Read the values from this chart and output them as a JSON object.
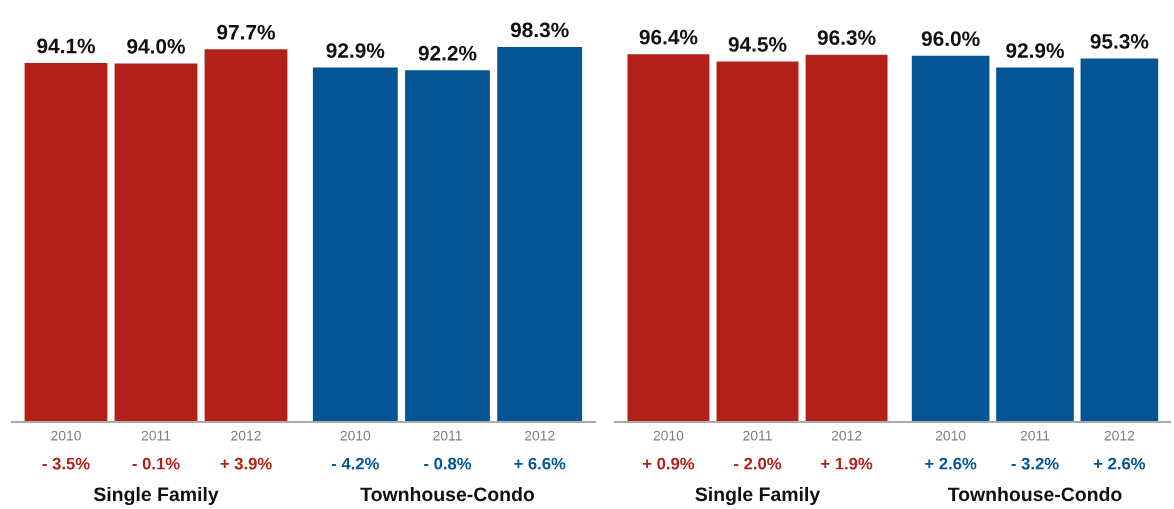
{
  "chart_data": [
    {
      "type": "bar",
      "categories": [
        "2010",
        "2011",
        "2012"
      ],
      "values": [
        94.1,
        94.0,
        97.7
      ],
      "color": "#b22019",
      "value_labels": [
        "94.1%",
        "94.0%",
        "97.7%"
      ],
      "annotations": [
        "- 3.5%",
        "- 0.1%",
        "+ 3.9%"
      ],
      "xlabel": "Single Family"
    },
    {
      "type": "bar",
      "categories": [
        "2010",
        "2011",
        "2012"
      ],
      "values": [
        92.9,
        92.2,
        98.3
      ],
      "color": "#035596",
      "value_labels": [
        "92.9%",
        "92.2%",
        "98.3%"
      ],
      "annotations": [
        "- 4.2%",
        "- 0.8%",
        "+ 6.6%"
      ],
      "xlabel": "Townhouse-Condo"
    },
    {
      "type": "bar",
      "categories": [
        "2010",
        "2011",
        "2012"
      ],
      "values": [
        96.4,
        94.5,
        96.3
      ],
      "color": "#b22019",
      "value_labels": [
        "96.4%",
        "94.5%",
        "96.3%"
      ],
      "annotations": [
        "+ 0.9%",
        "- 2.0%",
        "+ 1.9%"
      ],
      "xlabel": "Single Family"
    },
    {
      "type": "bar",
      "categories": [
        "2010",
        "2011",
        "2012"
      ],
      "values": [
        96.0,
        92.9,
        95.3
      ],
      "color": "#035596",
      "value_labels": [
        "96.0%",
        "92.9%",
        "95.3%"
      ],
      "annotations": [
        "+ 2.6%",
        "- 3.2%",
        "+ 2.6%"
      ],
      "xlabel": "Townhouse-Condo"
    }
  ]
}
